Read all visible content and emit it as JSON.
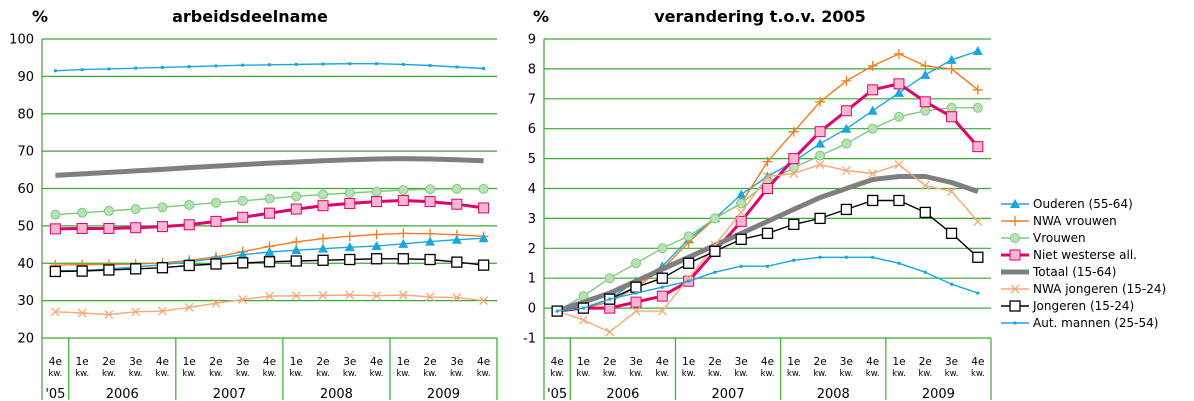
{
  "chart_data": [
    {
      "type": "line",
      "title": "arbeidsdeelname",
      "ylabel": "%",
      "ylim": [
        20,
        100
      ],
      "yticks": [
        "20",
        "30",
        "40",
        "50",
        "60",
        "70",
        "80",
        "90",
        "100"
      ],
      "grid": true,
      "quarters": [
        {
          "top": "4e",
          "bottom": "kw."
        },
        {
          "top": "1e",
          "bottom": "kw."
        },
        {
          "top": "2e",
          "bottom": "kw."
        },
        {
          "top": "3e",
          "bottom": "kw."
        },
        {
          "top": "4e",
          "bottom": "kw."
        },
        {
          "top": "1e",
          "bottom": "kw."
        },
        {
          "top": "2e",
          "bottom": "kw."
        },
        {
          "top": "3e",
          "bottom": "kw."
        },
        {
          "top": "4e",
          "bottom": "kw."
        },
        {
          "top": "1e",
          "bottom": "kw."
        },
        {
          "top": "2e",
          "bottom": "kw."
        },
        {
          "top": "3e",
          "bottom": "kw."
        },
        {
          "top": "4e",
          "bottom": "kw."
        },
        {
          "top": "1e",
          "bottom": "kw."
        },
        {
          "top": "2e",
          "bottom": "kw."
        },
        {
          "top": "3e",
          "bottom": "kw."
        },
        {
          "top": "4e",
          "bottom": "kw."
        }
      ],
      "years": [
        "'05",
        "2006",
        "2007",
        "2008",
        "2009"
      ],
      "series": [
        {
          "name": "Aut. mannen (25-54)",
          "values": [
            91.5,
            91.8,
            92.0,
            92.2,
            92.4,
            92.6,
            92.8,
            93.0,
            93.1,
            93.2,
            93.3,
            93.4,
            93.4,
            93.2,
            92.9,
            92.5,
            92.1
          ]
        },
        {
          "name": "Totaal (15-64)",
          "values": [
            63.5,
            63.9,
            64.3,
            64.7,
            65.1,
            65.6,
            66.0,
            66.4,
            66.8,
            67.1,
            67.4,
            67.7,
            67.9,
            68.0,
            67.9,
            67.7,
            67.4
          ]
        },
        {
          "name": "Vrouwen",
          "values": [
            53.0,
            53.5,
            54.0,
            54.5,
            55.0,
            55.6,
            56.2,
            56.7,
            57.3,
            57.9,
            58.4,
            58.8,
            59.2,
            59.6,
            59.8,
            59.9,
            59.9
          ]
        },
        {
          "name": "Niet westerse all.",
          "values": [
            49.2,
            49.3,
            49.3,
            49.5,
            49.8,
            50.3,
            51.2,
            52.3,
            53.4,
            54.5,
            55.4,
            56.0,
            56.5,
            56.8,
            56.5,
            55.8,
            54.8
          ]
        },
        {
          "name": "NWA vrouwen",
          "values": [
            39.5,
            39.6,
            39.7,
            39.8,
            40.1,
            40.8,
            41.7,
            43.1,
            44.5,
            45.7,
            46.6,
            47.2,
            47.7,
            48.0,
            47.9,
            47.6,
            47.2
          ]
        },
        {
          "name": "Ouderen (55-64)",
          "values": [
            38.0,
            38.1,
            38.5,
            39.0,
            39.6,
            40.4,
            41.3,
            42.3,
            43.0,
            43.5,
            43.9,
            44.3,
            44.6,
            45.2,
            45.8,
            46.3,
            46.7
          ]
        },
        {
          "name": "Jongeren (15-24)",
          "values": [
            37.8,
            37.9,
            38.2,
            38.5,
            38.8,
            39.4,
            39.8,
            40.1,
            40.4,
            40.6,
            40.8,
            41.0,
            41.2,
            41.2,
            41.0,
            40.3,
            39.5
          ]
        },
        {
          "name": "NWA jongeren (15-24)",
          "values": [
            27.0,
            26.7,
            26.3,
            27.0,
            27.2,
            28.2,
            29.3,
            30.3,
            31.2,
            31.3,
            31.4,
            31.5,
            31.3,
            31.5,
            31.0,
            30.8,
            30.0
          ]
        }
      ]
    },
    {
      "type": "line",
      "title": "verandering t.o.v. 2005",
      "ylabel": "%",
      "ylim": [
        -1,
        9
      ],
      "yticks": [
        "-1",
        "0",
        "1",
        "2",
        "3",
        "4",
        "5",
        "6",
        "7",
        "8",
        "9"
      ],
      "grid": true,
      "quarters": [
        {
          "top": "4e",
          "bottom": "kw."
        },
        {
          "top": "1e",
          "bottom": "kw."
        },
        {
          "top": "2e",
          "bottom": "kw."
        },
        {
          "top": "3e",
          "bottom": "kw."
        },
        {
          "top": "4e",
          "bottom": "kw."
        },
        {
          "top": "1e",
          "bottom": "kw."
        },
        {
          "top": "2e",
          "bottom": "kw."
        },
        {
          "top": "3e",
          "bottom": "kw."
        },
        {
          "top": "4e",
          "bottom": "kw."
        },
        {
          "top": "1e",
          "bottom": "kw."
        },
        {
          "top": "2e",
          "bottom": "kw."
        },
        {
          "top": "3e",
          "bottom": "kw."
        },
        {
          "top": "4e",
          "bottom": "kw."
        },
        {
          "top": "1e",
          "bottom": "kw."
        },
        {
          "top": "2e",
          "bottom": "kw."
        },
        {
          "top": "3e",
          "bottom": "kw."
        },
        {
          "top": "4e",
          "bottom": "kw."
        }
      ],
      "years": [
        "'05",
        "2006",
        "2007",
        "2008",
        "2009"
      ],
      "legend_position": "right",
      "series": [
        {
          "name": "Ouderen (55-64)",
          "values": [
            -0.1,
            0.0,
            0.3,
            0.9,
            1.4,
            2.3,
            3.0,
            3.8,
            4.4,
            4.9,
            5.5,
            6.0,
            6.6,
            7.2,
            7.8,
            8.3,
            8.6
          ]
        },
        {
          "name": "NWA vrouwen",
          "values": [
            -0.1,
            0.0,
            0.2,
            0.7,
            1.3,
            2.2,
            3.0,
            3.5,
            4.9,
            5.9,
            6.9,
            7.6,
            8.1,
            8.5,
            8.1,
            8.0,
            7.3
          ]
        },
        {
          "name": "Vrouwen",
          "values": [
            -0.1,
            0.4,
            1.0,
            1.5,
            2.0,
            2.4,
            3.0,
            3.5,
            4.2,
            4.7,
            5.1,
            5.5,
            6.0,
            6.4,
            6.6,
            6.7,
            6.7
          ]
        },
        {
          "name": "Niet westerse all.",
          "values": [
            -0.1,
            0.0,
            0.0,
            0.2,
            0.4,
            0.9,
            1.9,
            2.9,
            4.0,
            5.0,
            5.9,
            6.6,
            7.3,
            7.5,
            6.9,
            6.4,
            5.4
          ]
        },
        {
          "name": "Totaal (15-64)",
          "values": [
            -0.1,
            0.2,
            0.5,
            0.9,
            1.3,
            1.7,
            2.1,
            2.5,
            2.9,
            3.3,
            3.7,
            4.0,
            4.3,
            4.4,
            4.4,
            4.2,
            3.9
          ]
        },
        {
          "name": "NWA jongeren (15-24)",
          "values": [
            -0.1,
            -0.4,
            -0.8,
            -0.1,
            -0.1,
            1.0,
            2.1,
            3.2,
            4.4,
            4.5,
            4.8,
            4.6,
            4.5,
            4.8,
            4.1,
            3.9,
            2.9
          ]
        },
        {
          "name": "Jongeren (15-24)",
          "values": [
            -0.1,
            0.0,
            0.3,
            0.7,
            1.0,
            1.5,
            1.9,
            2.3,
            2.5,
            2.8,
            3.0,
            3.3,
            3.6,
            3.6,
            3.2,
            2.5,
            1.7
          ]
        },
        {
          "name": "Aut. mannen (25-54)",
          "values": [
            -0.1,
            0.0,
            0.3,
            0.5,
            0.7,
            0.9,
            1.2,
            1.4,
            1.4,
            1.6,
            1.7,
            1.7,
            1.7,
            1.5,
            1.2,
            0.8,
            0.5
          ]
        }
      ]
    }
  ],
  "legend": [
    {
      "label": "Ouderen (55-64)",
      "color": "#1aa6e0",
      "marker": "triangle"
    },
    {
      "label": "NWA vrouwen",
      "color": "#ef7d22",
      "marker": "plus"
    },
    {
      "label": "Vrouwen",
      "color": "#7fc97f",
      "marker": "circle"
    },
    {
      "label": "Niet westerse all.",
      "color": "#e0006b",
      "marker": "square"
    },
    {
      "label": "Totaal (15-64)",
      "color": "#7f7f7f",
      "marker": "none"
    },
    {
      "label": "NWA jongeren (15-24)",
      "color": "#f5a878",
      "marker": "cross"
    },
    {
      "label": "Jongeren (15-24)",
      "color": "#000000",
      "marker": "open-square"
    },
    {
      "label": "Aut. mannen (25-54)",
      "color": "#1aa6e0",
      "marker": "dot"
    }
  ],
  "colors": {
    "grid": "#3aa935",
    "axis": "#3aa935",
    "text": "#000000"
  }
}
